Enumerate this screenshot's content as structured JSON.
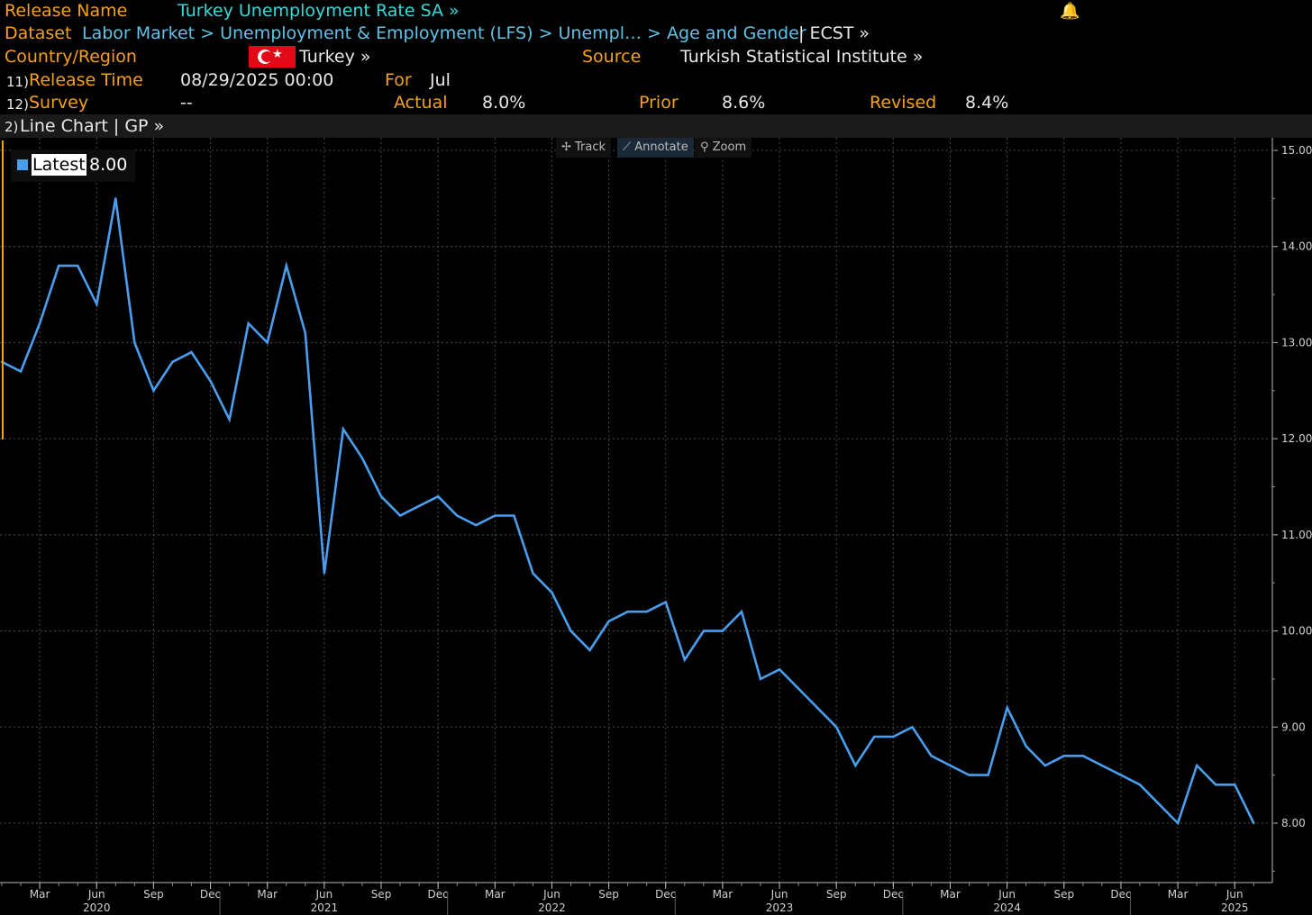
{
  "header": {
    "release_name_label": "Release Name",
    "release_name": "Turkey Unemployment Rate SA »",
    "dataset_label": "Dataset",
    "dataset_path": "Labor Market > Unemployment & Employment (LFS) > Unempl…   > Age and Gender",
    "dataset_suffix": "| ECST »",
    "country_label": "Country/Region",
    "country": "Turkey »",
    "source_label": "Source",
    "source": "Turkish Statistical Institute »",
    "release_time_num": "11)",
    "release_time_label": "Release Time",
    "release_time": "08/29/2025 00:00",
    "for_label": "For",
    "for_value": "Jul",
    "survey_num": "12)",
    "survey_label": "Survey",
    "survey_value": "--",
    "actual_label": "Actual",
    "actual_value": "8.0%",
    "prior_label": "Prior",
    "prior_value": "8.6%",
    "revised_label": "Revised",
    "revised_value": "8.4%"
  },
  "chartbar": {
    "num": "2)",
    "label": "Line Chart | GP »"
  },
  "tools": {
    "track": "✢ Track",
    "annotate": "⟋ Annotate",
    "zoom": "⚲ Zoom"
  },
  "legend": {
    "name": "Latest",
    "value": "8.00",
    "color": "#4a9eef"
  },
  "chart_data": {
    "type": "line",
    "x": [
      "2020-01",
      "2020-02",
      "2020-03",
      "2020-04",
      "2020-05",
      "2020-06",
      "2020-07",
      "2020-08",
      "2020-09",
      "2020-10",
      "2020-11",
      "2020-12",
      "2021-01",
      "2021-02",
      "2021-03",
      "2021-04",
      "2021-05",
      "2021-06",
      "2021-07",
      "2021-08",
      "2021-09",
      "2021-10",
      "2021-11",
      "2021-12",
      "2022-01",
      "2022-02",
      "2022-03",
      "2022-04",
      "2022-05",
      "2022-06",
      "2022-07",
      "2022-08",
      "2022-09",
      "2022-10",
      "2022-11",
      "2022-12",
      "2023-01",
      "2023-02",
      "2023-03",
      "2023-04",
      "2023-05",
      "2023-06",
      "2023-07",
      "2023-08",
      "2023-09",
      "2023-10",
      "2023-11",
      "2023-12",
      "2024-01",
      "2024-02",
      "2024-03",
      "2024-04",
      "2024-05",
      "2024-06",
      "2024-07",
      "2024-08",
      "2024-09",
      "2024-10",
      "2024-11",
      "2024-12",
      "2025-01",
      "2025-02",
      "2025-03",
      "2025-04",
      "2025-05",
      "2025-06",
      "2025-07"
    ],
    "series": [
      {
        "name": "Latest",
        "color": "#4a9eef",
        "values": [
          12.8,
          12.7,
          13.2,
          13.8,
          13.8,
          13.4,
          14.5,
          13.0,
          12.5,
          12.8,
          12.9,
          12.6,
          12.2,
          13.2,
          13.0,
          13.8,
          13.1,
          10.6,
          12.1,
          11.8,
          11.4,
          11.2,
          11.3,
          11.4,
          11.2,
          11.1,
          11.2,
          11.2,
          10.6,
          10.4,
          10.0,
          9.8,
          10.1,
          10.2,
          10.2,
          10.3,
          9.7,
          10.0,
          10.0,
          10.2,
          9.5,
          9.6,
          9.4,
          9.2,
          9.0,
          8.6,
          8.9,
          8.9,
          9.0,
          8.7,
          8.6,
          8.5,
          8.5,
          9.2,
          8.8,
          8.6,
          8.7,
          8.7,
          8.6,
          8.5,
          8.4,
          8.2,
          8.0,
          8.6,
          8.4,
          8.4,
          8.0
        ]
      }
    ],
    "ylim": [
      7.5,
      15.1
    ],
    "y_ticks": [
      "8.00",
      "9.00",
      "10.00",
      "11.00",
      "12.00",
      "13.00",
      "14.00",
      "15.00"
    ],
    "x_tick_labels": [
      "Mar",
      "Jun",
      "Sep",
      "Dec",
      "Mar",
      "Jun",
      "Sep",
      "Dec",
      "Mar",
      "Jun",
      "Sep",
      "Dec",
      "Mar",
      "Jun",
      "Sep",
      "Dec",
      "Mar",
      "Jun",
      "Sep",
      "Dec",
      "Mar",
      "Jun"
    ],
    "x_tick_months": [
      "2020-03",
      "2020-06",
      "2020-09",
      "2020-12",
      "2021-03",
      "2021-06",
      "2021-09",
      "2021-12",
      "2022-03",
      "2022-06",
      "2022-09",
      "2022-12",
      "2023-03",
      "2023-06",
      "2023-09",
      "2023-12",
      "2024-03",
      "2024-06",
      "2024-09",
      "2024-12",
      "2025-03",
      "2025-06"
    ],
    "year_labels": [
      "2020",
      "2021",
      "2022",
      "2023",
      "2024",
      "2025"
    ],
    "year_months": [
      "2020-06",
      "2021-06",
      "2022-06",
      "2023-06",
      "2024-06",
      "2025-06"
    ],
    "grid": true,
    "legend_position": "top-left"
  }
}
